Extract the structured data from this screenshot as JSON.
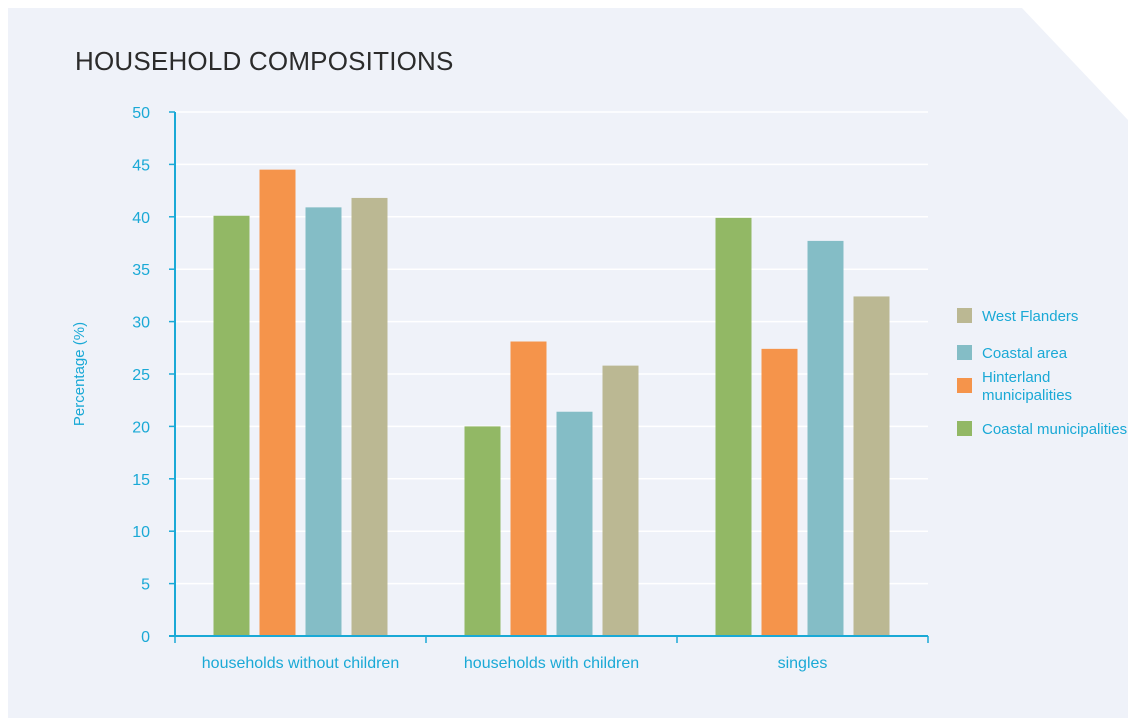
{
  "chart_data": {
    "type": "bar",
    "title": "HOUSEHOLD COMPOSITIONS",
    "ylabel": "Percentage (%)",
    "xlabel": "",
    "ylim": [
      0,
      50
    ],
    "yticks": [
      0,
      5,
      10,
      15,
      20,
      25,
      30,
      35,
      40,
      45,
      50
    ],
    "grid": true,
    "legend_position": "right",
    "categories": [
      "households without children",
      "households with children",
      "singles"
    ],
    "series": [
      {
        "name": "Coastal municipalities",
        "color": "#92b865",
        "values": [
          40.1,
          20.0,
          39.9
        ]
      },
      {
        "name": "Hinterland municipalities",
        "color": "#f5944b",
        "values": [
          44.5,
          28.1,
          27.4
        ]
      },
      {
        "name": "Coastal area",
        "color": "#84bdc6",
        "values": [
          40.9,
          21.4,
          37.7
        ]
      },
      {
        "name": "West Flanders",
        "color": "#bbb893",
        "values": [
          41.8,
          25.8,
          32.4
        ]
      }
    ],
    "legend_order": [
      "West Flanders",
      "Coastal area",
      "Hinterland municipalities",
      "Coastal municipalities"
    ]
  },
  "colors": {
    "background": "#eff2f9",
    "axis": "#1aa9d6",
    "grid": "#ffffff",
    "text": "#2b2b2b"
  }
}
